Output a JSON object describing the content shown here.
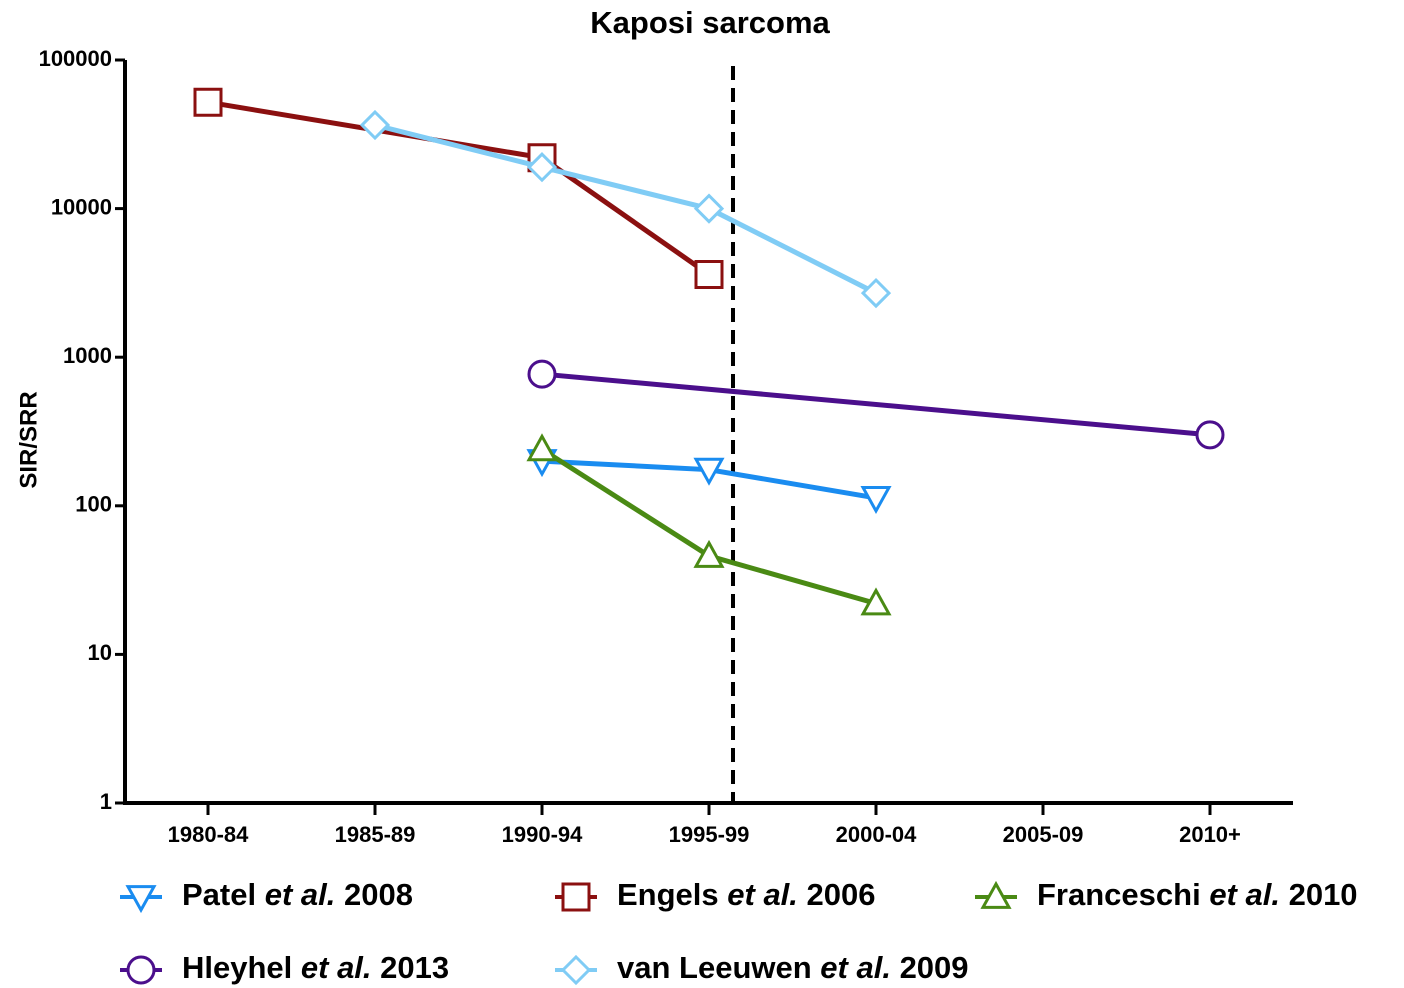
{
  "chart_data": {
    "type": "line",
    "title": "Kaposi sarcoma",
    "y_label": "SIR/SRR",
    "categories": [
      "1980-84",
      "1985-89",
      "1990-94",
      "1995-99",
      "2000-04",
      "2005-09",
      "2010+"
    ],
    "y_scale": "log",
    "ylim": [
      1,
      100000
    ],
    "yticks": [
      1,
      10,
      100,
      1000,
      10000,
      100000
    ],
    "series": [
      {
        "name": "Patel et al. 2008",
        "color": "#1a8cf0",
        "marker": "triangle-down",
        "values": [
          null,
          null,
          200,
          175,
          113,
          null,
          null
        ]
      },
      {
        "name": "Engels et al. 2006",
        "color": "#8b1010",
        "marker": "square",
        "values": [
          52000,
          null,
          22000,
          3600,
          null,
          null,
          null
        ]
      },
      {
        "name": "Franceschi et al. 2010",
        "color": "#4a8a14",
        "marker": "triangle-up",
        "values": [
          null,
          null,
          240,
          46,
          22,
          null,
          null
        ]
      },
      {
        "name": "Hleyhel et al. 2013",
        "color": "#4b0f8c",
        "marker": "circle",
        "values": [
          null,
          null,
          770,
          null,
          null,
          null,
          300
        ]
      },
      {
        "name": "van Leeuwen et al. 2009",
        "color": "#80ccf5",
        "marker": "diamond",
        "values": [
          null,
          36500,
          19000,
          10000,
          2700,
          null,
          null
        ]
      }
    ]
  }
}
